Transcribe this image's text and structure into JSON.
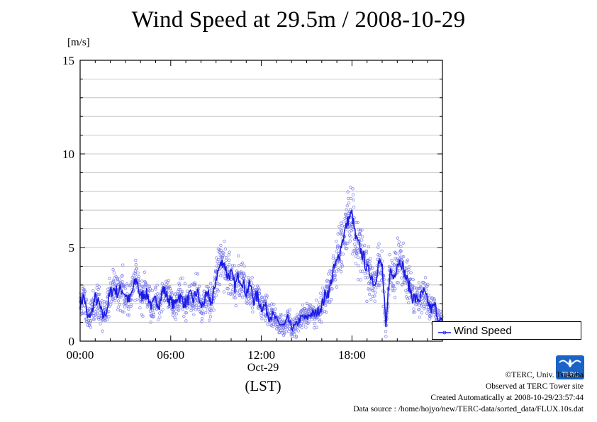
{
  "chart_data": {
    "type": "scatter",
    "title": "Wind Speed at 29.5m / 2008-10-29",
    "ylabel": "[m/s]",
    "xlabel": "(LST)",
    "x_sublabel": "Oct-29",
    "x_unit": "hour",
    "xlim": [
      0,
      23.99
    ],
    "ylim": [
      0,
      15
    ],
    "y_ticks": [
      0,
      5,
      10,
      15
    ],
    "y_tick_labels": [
      "0",
      "5",
      "10",
      "15"
    ],
    "x_ticks": [
      0,
      6,
      12,
      18
    ],
    "x_tick_labels": [
      "00:00",
      "06:00",
      "12:00",
      "18:00"
    ],
    "grid": true,
    "legend_position": "right",
    "series": [
      {
        "name": "Wind Speed",
        "mean_color": "#1a1ae6",
        "sample_color": "#7a7ae8",
        "x": [
          0,
          0.25,
          0.5,
          0.75,
          1,
          1.25,
          1.5,
          1.75,
          2,
          2.25,
          2.5,
          2.75,
          3,
          3.25,
          3.5,
          3.75,
          4,
          4.25,
          4.5,
          4.75,
          5,
          5.25,
          5.5,
          5.75,
          6,
          6.25,
          6.5,
          6.75,
          7,
          7.25,
          7.5,
          7.75,
          8,
          8.25,
          8.5,
          8.75,
          9,
          9.25,
          9.5,
          9.75,
          10,
          10.25,
          10.5,
          10.75,
          11,
          11.25,
          11.5,
          11.75,
          12,
          12.25,
          12.5,
          12.75,
          13,
          13.25,
          13.5,
          13.75,
          14,
          14.25,
          14.5,
          14.75,
          15,
          15.25,
          15.5,
          15.75,
          16,
          16.25,
          16.5,
          16.75,
          17,
          17.25,
          17.5,
          17.75,
          18,
          18.25,
          18.5,
          18.75,
          19,
          19.25,
          19.5,
          19.75,
          20,
          20.25,
          20.5,
          20.75,
          21,
          21.25,
          21.5,
          21.75,
          22,
          22.25,
          22.5,
          22.75,
          23,
          23.25,
          23.5,
          23.75
        ],
        "y": [
          2.0,
          2.4,
          1.2,
          1.5,
          2.3,
          2.0,
          1.3,
          1.6,
          2.6,
          2.8,
          2.6,
          2.8,
          2.5,
          2.1,
          2.8,
          3.3,
          2.3,
          2.6,
          2.4,
          1.8,
          2.2,
          2.0,
          2.8,
          2.4,
          2.1,
          1.9,
          2.5,
          2.2,
          2.0,
          2.4,
          2.2,
          2.7,
          1.8,
          2.2,
          2.4,
          2.0,
          3.4,
          4.0,
          4.3,
          3.5,
          3.6,
          2.9,
          3.5,
          3.2,
          2.6,
          3.0,
          2.2,
          2.4,
          1.8,
          1.9,
          1.3,
          1.4,
          1.1,
          0.9,
          0.8,
          1.2,
          0.7,
          0.8,
          1.1,
          1.3,
          1.2,
          1.5,
          1.4,
          1.6,
          1.9,
          2.5,
          2.7,
          3.7,
          4.2,
          5.0,
          5.8,
          6.5,
          6.8,
          5.5,
          5.0,
          4.5,
          3.8,
          3.6,
          3.0,
          4.2,
          4.0,
          0.6,
          3.8,
          3.4,
          4.2,
          4.3,
          3.6,
          3.0,
          2.4,
          2.2,
          2.3,
          2.6,
          2.1,
          1.7,
          1.9,
          1.1
        ]
      }
    ]
  },
  "footer": {
    "copyright": "©TERC, Univ. Tsukuba",
    "observed": "Observed at TERC Tower site",
    "created": "Created Automatically at 2008-10-29/23:57:44",
    "source": "Data source : /home/hojyo/new/TERC-data/sorted_data/FLUX.10s.dat"
  },
  "logo": {
    "text": "TERC",
    "color": "#1a64c8"
  }
}
